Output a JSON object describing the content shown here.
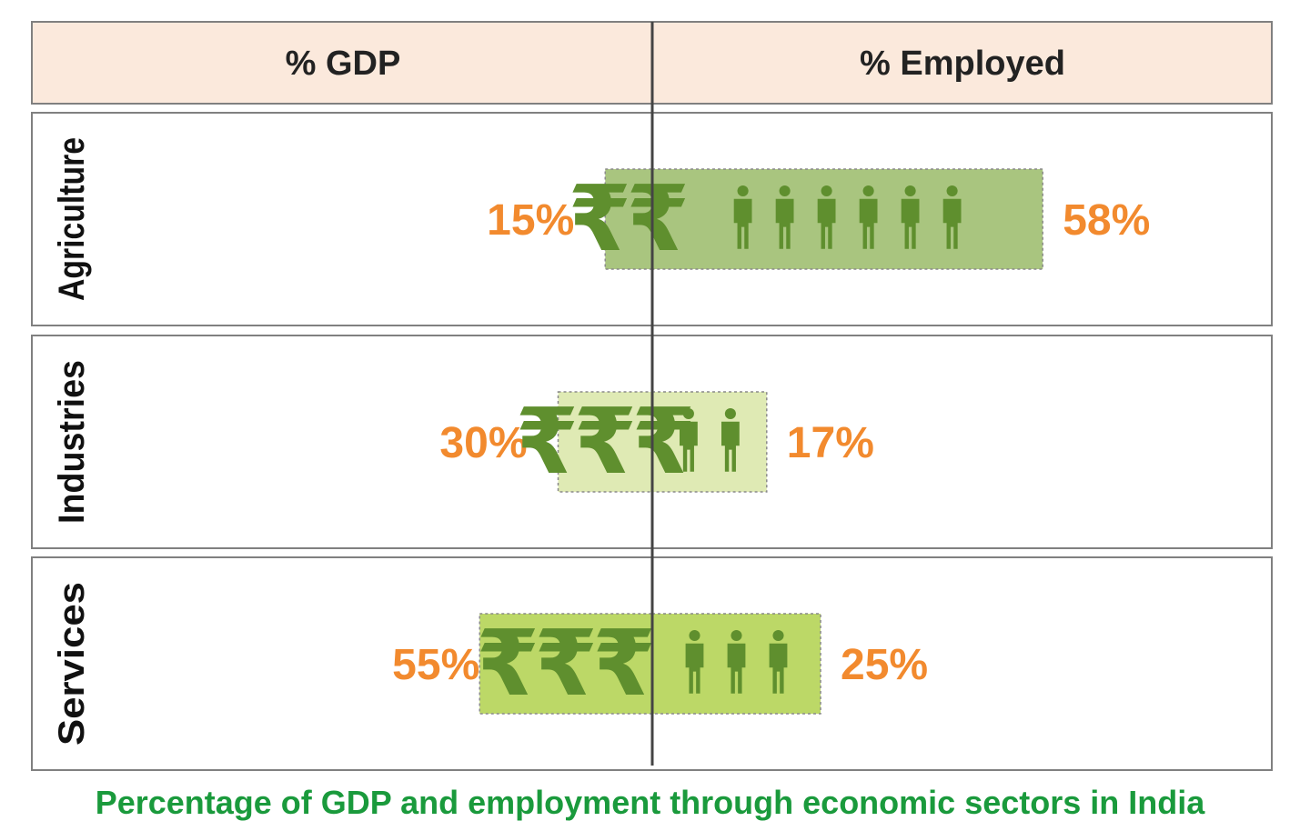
{
  "caption": "Percentage of GDP and employment through economic sectors in India",
  "colors": {
    "header_bg": "#fbe9dc",
    "label_color": "#f28a2e",
    "icon_color": "#5f8f2e",
    "caption_color": "#1a9a3c"
  },
  "icons": {
    "gdp": "rupee-icon",
    "employed": "person-icon"
  },
  "chart_data": {
    "type": "bar",
    "layout": "diverging-horizontal",
    "columns": [
      "% GDP",
      "% Employed"
    ],
    "categories": [
      "Agriculture",
      "Industries",
      "Services"
    ],
    "series": [
      {
        "name": "% GDP",
        "values": [
          15,
          30,
          55
        ],
        "labels": [
          "15%",
          "30%",
          "55%"
        ],
        "icon_counts": [
          2,
          3,
          3
        ]
      },
      {
        "name": "% Employed",
        "values": [
          58,
          17,
          25
        ],
        "labels": [
          "58%",
          "17%",
          "25%"
        ],
        "icon_counts": [
          6,
          2,
          3
        ]
      }
    ],
    "bar_colors": [
      "#a9c57f",
      "#dfeab4",
      "#bcd867"
    ]
  }
}
